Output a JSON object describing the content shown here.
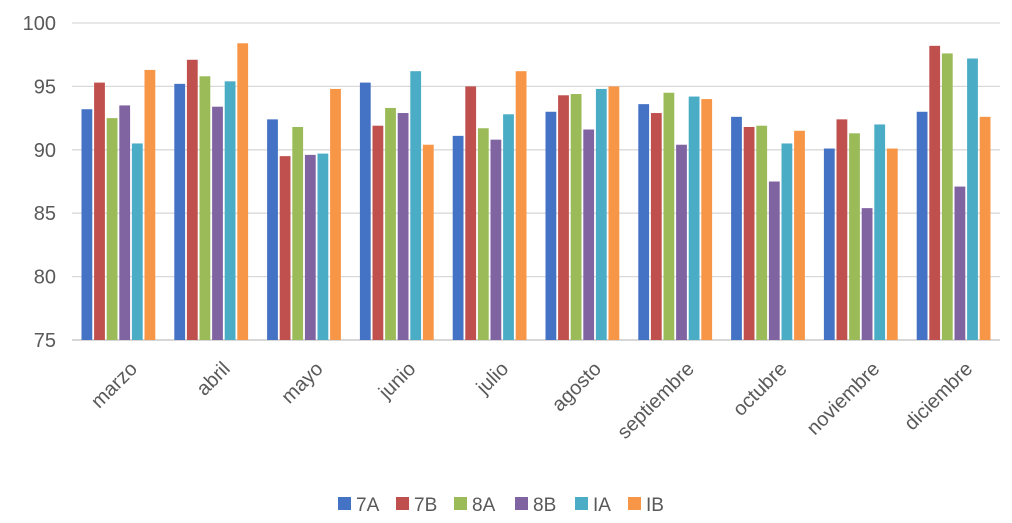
{
  "chart_data": {
    "type": "bar",
    "title": "",
    "xlabel": "",
    "ylabel": "",
    "ylim": [
      75,
      100
    ],
    "yticks": [
      75,
      80,
      85,
      90,
      95,
      100
    ],
    "grid": true,
    "legend_position": "bottom",
    "categories": [
      "marzo",
      "abril",
      "mayo",
      "junio",
      "julio",
      "agosto",
      "septiembre",
      "octubre",
      "noviembre",
      "diciembre"
    ],
    "series": [
      {
        "name": "7A",
        "color": "#4472C4",
        "values": [
          93.2,
          95.2,
          92.4,
          95.3,
          91.1,
          93.0,
          93.6,
          92.6,
          90.1,
          93.0
        ]
      },
      {
        "name": "7B",
        "color": "#C0504D",
        "values": [
          95.3,
          97.1,
          89.5,
          91.9,
          95.0,
          94.3,
          92.9,
          91.8,
          92.4,
          98.2
        ]
      },
      {
        "name": "8A",
        "color": "#9BBB59",
        "values": [
          92.5,
          95.8,
          91.8,
          93.3,
          91.7,
          94.4,
          94.5,
          91.9,
          91.3,
          97.6
        ]
      },
      {
        "name": "8B",
        "color": "#8064A2",
        "values": [
          93.5,
          93.4,
          89.6,
          92.9,
          90.8,
          91.6,
          90.4,
          87.5,
          85.4,
          87.1
        ]
      },
      {
        "name": "IA",
        "color": "#4BACC6",
        "values": [
          90.5,
          95.4,
          89.7,
          96.2,
          92.8,
          94.8,
          94.2,
          90.5,
          92.0,
          97.2
        ]
      },
      {
        "name": "IB",
        "color": "#F79646",
        "values": [
          96.3,
          98.4,
          94.8,
          90.4,
          96.2,
          95.0,
          94.0,
          91.5,
          90.1,
          92.6
        ]
      }
    ]
  }
}
